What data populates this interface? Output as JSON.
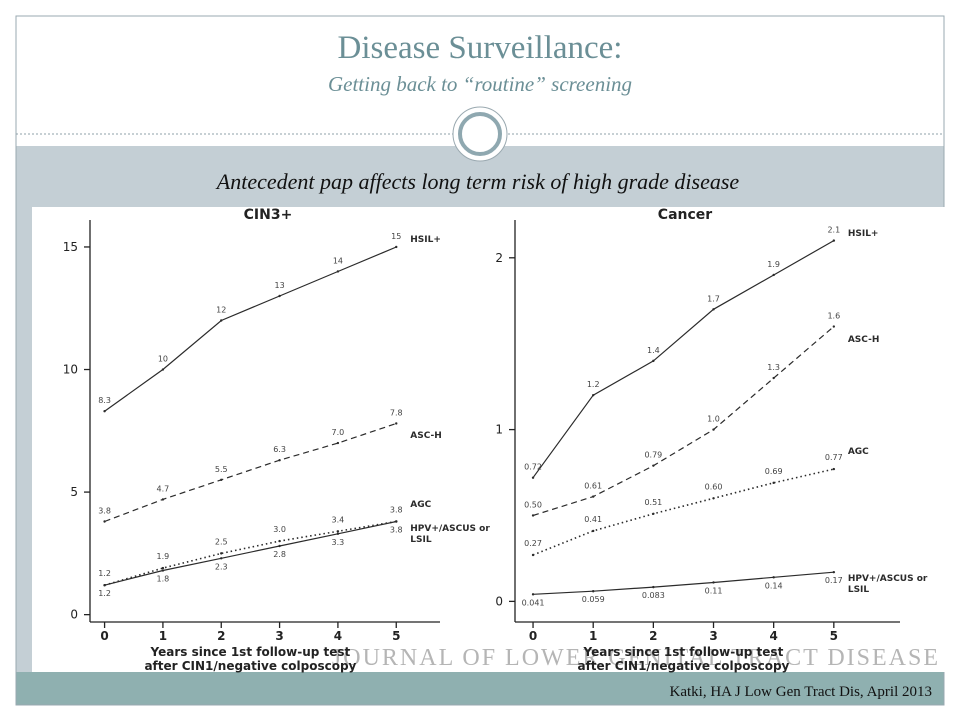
{
  "title": "Disease Surveillance:",
  "subtitle": "Getting back to “routine” screening",
  "heading": "Antecedent pap affects long term risk of high grade disease",
  "citation": "Katki, HA J Low Gen Tract Dis, April 2013",
  "watermark": "JOURNAL OF LOWER GENITAL TRACT DISEASE",
  "chart_data": [
    {
      "type": "line",
      "title": "CIN3+",
      "x_label": [
        "Years since 1st follow-up test",
        "after CIN1/negative colposcopy"
      ],
      "x": [
        0,
        1,
        2,
        3,
        4,
        5
      ],
      "xlim": [
        -0.25,
        5.75
      ],
      "xticks": [
        0,
        1,
        2,
        3,
        4,
        5
      ],
      "ylim": [
        -0.3,
        16.1
      ],
      "yticks": [
        0,
        5,
        10,
        15
      ],
      "series": [
        {
          "name": "HSIL+",
          "color": "#2b2b2b",
          "dash": "solid",
          "values": [
            8.3,
            10,
            12,
            13,
            14,
            15
          ]
        },
        {
          "name": "ASC-H",
          "color": "#2b2b2b",
          "dash": "dashed",
          "values": [
            3.8,
            4.7,
            5.5,
            6.3,
            7.0,
            7.8
          ],
          "value_labels": [
            "3.8",
            "4.7",
            "5.5",
            "6.3",
            "7.0",
            "7.8"
          ]
        },
        {
          "name": "AGC",
          "color": "#2b2b2b",
          "dash": "dotted",
          "values": [
            1.2,
            1.9,
            2.5,
            3.0,
            3.4,
            3.8
          ],
          "value_labels": [
            "1.2",
            "1.9",
            "2.5",
            "3.0",
            "3.4",
            "3.8"
          ]
        },
        {
          "name": "HPV+/ASCUS or LSIL",
          "color": "#2b2b2b",
          "dash": "solid",
          "values": [
            1.2,
            1.8,
            2.3,
            2.8,
            3.3,
            3.8
          ]
        }
      ]
    },
    {
      "type": "line",
      "title": "Cancer",
      "x_label": [
        "Years since 1st follow-up test",
        "after CIN1/negative colposcopy"
      ],
      "x": [
        0,
        1,
        2,
        3,
        4,
        5
      ],
      "xlim": [
        -0.3,
        6.1
      ],
      "xticks": [
        0,
        1,
        2,
        3,
        4,
        5
      ],
      "ylim": [
        -0.12,
        2.22
      ],
      "yticks": [
        0,
        1,
        2
      ],
      "series": [
        {
          "name": "HSIL+",
          "color": "#2b2b2b",
          "dash": "solid",
          "values": [
            0.72,
            1.2,
            1.4,
            1.7,
            1.9,
            2.1
          ]
        },
        {
          "name": "ASC-H",
          "color": "#2b2b2b",
          "dash": "dashed",
          "values": [
            0.5,
            0.61,
            0.79,
            1.0,
            1.3,
            1.6
          ],
          "value_labels": [
            "0.50",
            "0.61",
            "0.79",
            "1.0",
            "1.3",
            "1.6"
          ]
        },
        {
          "name": "AGC",
          "color": "#2b2b2b",
          "dash": "dotted",
          "values": [
            0.27,
            0.41,
            0.51,
            0.6,
            0.69,
            0.77
          ],
          "value_labels": [
            "0.27",
            "0.41",
            "0.51",
            "0.60",
            "0.69",
            "0.77"
          ]
        },
        {
          "name": "HPV+/ASCUS or LSIL",
          "color": "#2b2b2b",
          "dash": "solid",
          "values": [
            0.041,
            0.059,
            0.083,
            0.11,
            0.14,
            0.17
          ]
        }
      ]
    }
  ]
}
